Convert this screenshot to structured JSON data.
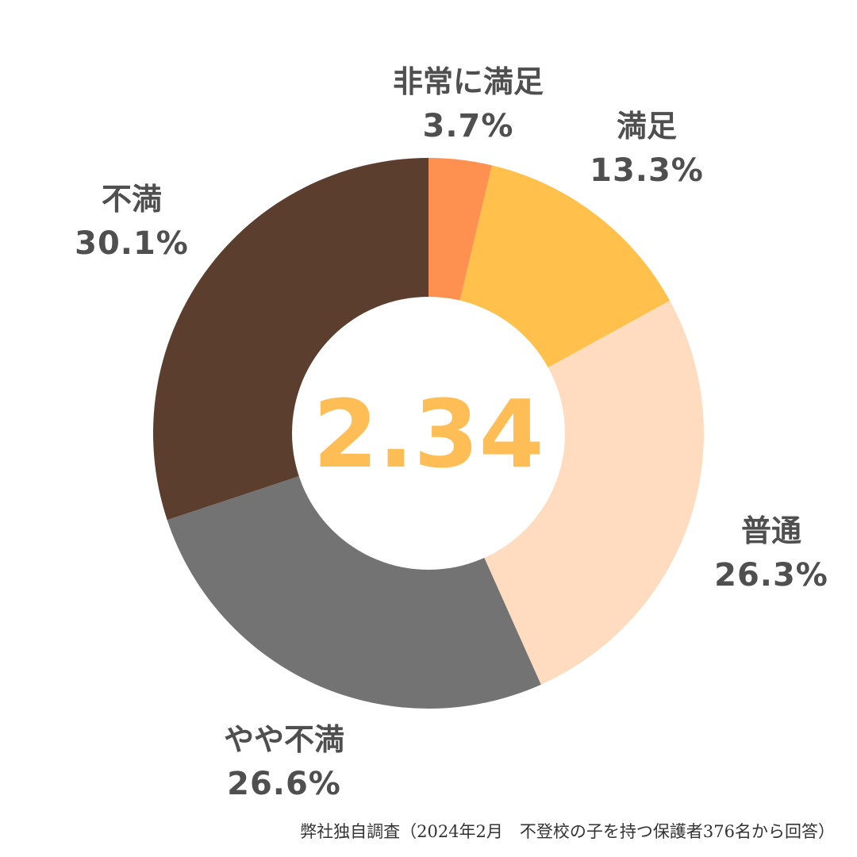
{
  "chart_data": {
    "type": "pie",
    "donut": true,
    "center_value": "2.34",
    "categories": [
      "非常に満足",
      "満足",
      "普通",
      "やや不満",
      "不満"
    ],
    "values": [
      3.7,
      13.3,
      26.3,
      26.6,
      30.1
    ],
    "value_labels": [
      "3.7%",
      "13.3%",
      "26.3%",
      "26.6%",
      "30.1%"
    ],
    "colors": [
      "#ff9150",
      "#ffc04c",
      "#ffdcbf",
      "#737373",
      "#5c3e2e"
    ],
    "start_angle_deg": 0,
    "direction": "clockwise"
  },
  "source_note": "弊社独自調査（2024年2月　不登校の子を持つ保護者376名から回答）"
}
